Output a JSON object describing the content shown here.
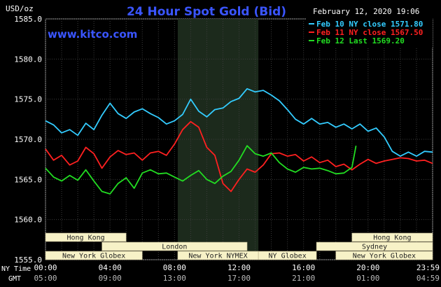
{
  "header": {
    "y_unit": "USD/oz",
    "title": "24 Hour Spot Gold (Bid)",
    "datetime": "February 12, 2020 19:06",
    "website": "www.kitco.com"
  },
  "chart_data": {
    "type": "line",
    "title": "24 Hour Spot Gold (Bid)",
    "ylabel": "USD/oz",
    "ylim": [
      1555,
      1585
    ],
    "xlim": [
      0,
      24
    ],
    "grid": true,
    "y_ticks": [
      "1585.0",
      "1580.0",
      "1575.0",
      "1570.0",
      "1565.0",
      "1560.0",
      "1555.0"
    ],
    "y_tick_values": [
      1585,
      1580,
      1575,
      1570,
      1565,
      1560,
      1555
    ],
    "x_tick_values": [
      0,
      4,
      8,
      12,
      16,
      20,
      23.98
    ],
    "x_ticks_ny": [
      "00:00",
      "04:00",
      "08:00",
      "12:00",
      "16:00",
      "20:00",
      "23:59"
    ],
    "x_ticks_gmt": [
      "05:00",
      "09:00",
      "13:00",
      "17:00",
      "21:00",
      "01:00",
      "04:59"
    ],
    "x_axis_labels": {
      "ny": "NY Time",
      "gmt": "GMT"
    },
    "shaded_hours": [
      8.2,
      13.2
    ],
    "legend": "top-right",
    "legend_entries": [
      "Feb 10 NY close 1571.80",
      "Feb 11 NY close 1567.50",
      "Feb 12 Last 1569.20"
    ],
    "series": [
      {
        "name": "Feb 10 NY close 1571.80",
        "color": "#33ccff",
        "x": [
          0,
          0.5,
          1,
          1.5,
          2,
          2.5,
          3,
          3.5,
          4,
          4.5,
          5,
          5.5,
          6,
          6.5,
          7,
          7.5,
          8,
          8.5,
          9,
          9.5,
          10,
          10.5,
          11,
          11.5,
          12,
          12.5,
          13,
          13.5,
          14,
          14.5,
          15,
          15.5,
          16,
          16.5,
          17,
          17.5,
          18,
          18.5,
          19,
          19.5,
          20,
          20.5,
          21,
          21.5,
          22,
          22.5,
          23,
          23.5,
          24
        ],
        "values": [
          1572.3,
          1571.8,
          1570.8,
          1571.2,
          1570.5,
          1572.0,
          1571.2,
          1573.0,
          1574.5,
          1573.2,
          1572.6,
          1573.4,
          1573.8,
          1573.2,
          1572.7,
          1571.9,
          1572.3,
          1573.1,
          1575.0,
          1573.5,
          1572.8,
          1573.7,
          1573.9,
          1574.7,
          1575.1,
          1576.3,
          1575.9,
          1576.1,
          1575.5,
          1574.8,
          1573.7,
          1572.5,
          1571.9,
          1572.6,
          1571.9,
          1572.1,
          1571.5,
          1571.9,
          1571.3,
          1571.9,
          1571.0,
          1571.4,
          1570.3,
          1568.5,
          1567.9,
          1568.4,
          1567.9,
          1568.5,
          1568.4
        ]
      },
      {
        "name": "Feb 11 NY close 1567.50",
        "color": "#ff2020",
        "x": [
          0,
          0.5,
          1,
          1.5,
          2,
          2.5,
          3,
          3.5,
          4,
          4.5,
          5,
          5.5,
          6,
          6.5,
          7,
          7.5,
          8,
          8.5,
          9,
          9.5,
          10,
          10.5,
          11,
          11.5,
          12,
          12.5,
          13,
          13.5,
          14,
          14.5,
          15,
          15.5,
          16,
          16.5,
          17,
          17.5,
          18,
          18.5,
          19,
          19.5,
          20,
          20.5,
          21,
          21.5,
          22,
          22.5,
          23,
          23.5,
          24
        ],
        "values": [
          1568.8,
          1567.4,
          1568.0,
          1566.8,
          1567.3,
          1569.0,
          1568.2,
          1566.4,
          1567.8,
          1568.6,
          1568.1,
          1568.3,
          1567.4,
          1568.3,
          1568.5,
          1568.0,
          1569.4,
          1571.2,
          1572.2,
          1571.5,
          1569.0,
          1568.0,
          1564.5,
          1563.5,
          1565.0,
          1566.3,
          1565.9,
          1566.8,
          1568.2,
          1568.3,
          1567.9,
          1568.1,
          1567.3,
          1567.8,
          1567.1,
          1567.4,
          1566.6,
          1566.9,
          1566.2,
          1566.9,
          1567.5,
          1567.0,
          1567.3,
          1567.5,
          1567.7,
          1567.6,
          1567.3,
          1567.4,
          1567.0
        ]
      },
      {
        "name": "Feb 12 Last 1569.20",
        "color": "#22dd22",
        "x": [
          0,
          0.5,
          1,
          1.5,
          2,
          2.5,
          3,
          3.5,
          4,
          4.5,
          5,
          5.5,
          6,
          6.5,
          7,
          7.5,
          8,
          8.5,
          9,
          9.5,
          10,
          10.5,
          11,
          11.5,
          12,
          12.5,
          13,
          13.5,
          14,
          14.5,
          15,
          15.5,
          16,
          16.5,
          17,
          17.5,
          18,
          18.5,
          19,
          19.25
        ],
        "values": [
          1566.4,
          1565.3,
          1564.8,
          1565.5,
          1564.9,
          1566.2,
          1564.8,
          1563.5,
          1563.2,
          1564.5,
          1565.2,
          1563.9,
          1565.8,
          1566.2,
          1565.7,
          1565.8,
          1565.3,
          1564.8,
          1565.5,
          1566.1,
          1565.0,
          1564.5,
          1565.4,
          1566.0,
          1567.4,
          1569.2,
          1568.2,
          1567.9,
          1568.3,
          1567.1,
          1566.3,
          1565.9,
          1566.5,
          1566.3,
          1566.4,
          1566.1,
          1565.7,
          1565.8,
          1566.5,
          1569.2
        ]
      }
    ]
  },
  "sessions": [
    {
      "label": "Hong Kong",
      "row": 1,
      "start": 0,
      "end": 5
    },
    {
      "label": "London",
      "row": 2,
      "start": 3.5,
      "end": 12.5
    },
    {
      "label": "New York Globex",
      "row": 3,
      "start": 0,
      "end": 6
    },
    {
      "label": "New York NYMEX",
      "row": 3,
      "start": 8.2,
      "end": 13.2
    },
    {
      "label": "NY Globex",
      "row": 3,
      "start": 13.2,
      "end": 16.8
    },
    {
      "label": "Hong Kong",
      "row": 1,
      "start": 19.0,
      "end": 24
    },
    {
      "label": "Sydney",
      "row": 2,
      "start": 16.8,
      "end": 24
    },
    {
      "label": "New York Globex",
      "row": 3,
      "start": 18.0,
      "end": 24
    }
  ]
}
